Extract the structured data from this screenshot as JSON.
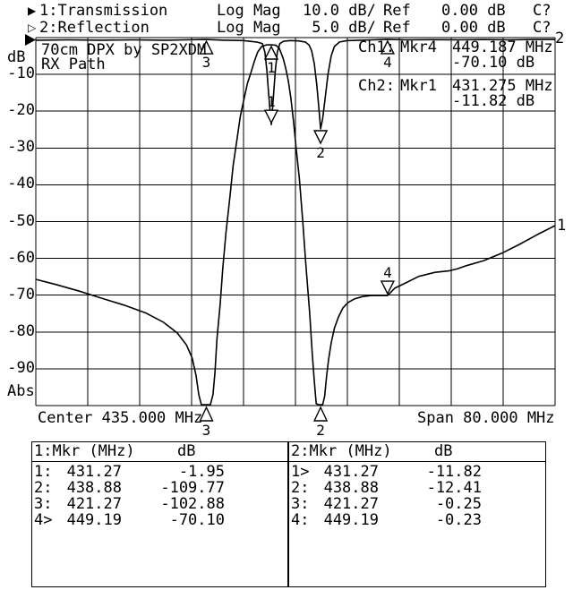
{
  "annotation": {
    "line1": {
      "marker_icon": "▶",
      "channel": "1:Transmission",
      "format": "Log Mag",
      "scale": "10.0 dB/",
      "ref_label": "Ref",
      "ref_value": "0.00 dB",
      "status": "C?"
    },
    "line2": {
      "marker_icon": "▷",
      "channel": "2:Reflection",
      "format": "Log Mag",
      "scale": " 5.0 dB/",
      "ref_label": "Ref",
      "ref_value": "0.00 dB",
      "status": "C?"
    }
  },
  "chart": {
    "title_line1": "70cm DPX by SP2XDM",
    "title_line2": "RX Path",
    "y_axis_unit": "dB",
    "y_axis_bottom": "Abs",
    "y_ticks": [
      "-10",
      "-20",
      "-30",
      "-40",
      "-50",
      "-60",
      "-70",
      "-80",
      "-90"
    ],
    "center_label": "Center 435.000 MHz",
    "span_label": "Span 80.000 MHz",
    "trace_labels": {
      "trace1": "1",
      "trace2": "2"
    },
    "readouts": [
      {
        "channel": "Ch1:",
        "marker": "Mkr4",
        "frequency": "449.187 MHz",
        "level": "-70.10 dB"
      },
      {
        "channel": "Ch2:",
        "marker": "Mkr1",
        "frequency": "431.275 MHz",
        "level": "-11.82 dB"
      }
    ]
  },
  "marker_tables": [
    {
      "title": "1:Mkr (MHz)",
      "db_header": "dB",
      "rows": [
        [
          "1:",
          "431.27",
          "-1.95"
        ],
        [
          "2:",
          "438.88",
          "-109.77"
        ],
        [
          "3:",
          "421.27",
          "-102.88"
        ],
        [
          "4>",
          "449.19",
          "-70.10"
        ]
      ]
    },
    {
      "title": "2:Mkr (MHz)",
      "db_header": "dB",
      "rows": [
        [
          "1>",
          "431.27",
          "-11.82"
        ],
        [
          "2:",
          "438.88",
          "-12.41"
        ],
        [
          "3:",
          "421.27",
          "-0.25"
        ],
        [
          "4:",
          "449.19",
          "-0.23"
        ]
      ]
    }
  ],
  "chart_data": {
    "type": "line",
    "title": "70cm DPX by SP2XDM RX Path",
    "x_unit": "MHz",
    "y_unit": "dB",
    "center_mhz": 435.0,
    "span_mhz": 80.0,
    "x_range": [
      395,
      475
    ],
    "grid": {
      "divisions_x": 10,
      "divisions_y": 10,
      "grid_on": true
    },
    "series": [
      {
        "name": "Transmission",
        "channel": 1,
        "db_per_div": 10,
        "ref_db": 0,
        "points": [
          [
            395,
            -65.7
          ],
          [
            398.3,
            -67.2
          ],
          [
            401.7,
            -68.9
          ],
          [
            405.1,
            -70.8
          ],
          [
            408.6,
            -72.7
          ],
          [
            412,
            -74.9
          ],
          [
            414.7,
            -77.4
          ],
          [
            416.8,
            -80.3
          ],
          [
            418.2,
            -83.5
          ],
          [
            419.1,
            -87.1
          ],
          [
            419.7,
            -92
          ],
          [
            420.1,
            -97
          ],
          [
            420.5,
            -101.5
          ],
          [
            421.27,
            -102.9
          ],
          [
            421.9,
            -101.5
          ],
          [
            422.3,
            -97
          ],
          [
            422.6,
            -91
          ],
          [
            422.9,
            -82
          ],
          [
            423.4,
            -72.5
          ],
          [
            423.8,
            -62.8
          ],
          [
            424.3,
            -53
          ],
          [
            424.9,
            -43.3
          ],
          [
            425.4,
            -34.8
          ],
          [
            426,
            -27.5
          ],
          [
            426.5,
            -21.4
          ],
          [
            427.1,
            -16.5
          ],
          [
            427.6,
            -12.4
          ],
          [
            428.2,
            -9.2
          ],
          [
            428.7,
            -6.3
          ],
          [
            429.2,
            -3.9
          ],
          [
            429.8,
            -2.4
          ],
          [
            430.5,
            -2
          ],
          [
            431.27,
            -1.95
          ],
          [
            432,
            -2.1
          ],
          [
            432.5,
            -2.9
          ],
          [
            433.1,
            -5.6
          ],
          [
            433.5,
            -8.3
          ],
          [
            433.9,
            -11.7
          ],
          [
            434.3,
            -16.5
          ],
          [
            434.7,
            -22.6
          ],
          [
            435.1,
            -29.9
          ],
          [
            435.6,
            -38.4
          ],
          [
            436.1,
            -49.4
          ],
          [
            436.6,
            -61.6
          ],
          [
            437.2,
            -74.9
          ],
          [
            437.6,
            -86.4
          ],
          [
            437.9,
            -93.2
          ],
          [
            438.2,
            -99.5
          ],
          [
            438.55,
            -105
          ],
          [
            438.88,
            -109.77
          ],
          [
            439.2,
            -104
          ],
          [
            439.5,
            -97.5
          ],
          [
            439.8,
            -92
          ],
          [
            440.1,
            -87.5
          ],
          [
            440.5,
            -83
          ],
          [
            441,
            -79
          ],
          [
            441.6,
            -76
          ],
          [
            442.3,
            -73.5
          ],
          [
            443.1,
            -72
          ],
          [
            444.1,
            -71
          ],
          [
            445.3,
            -70.4
          ],
          [
            446.6,
            -70.1
          ],
          [
            448,
            -70.05
          ],
          [
            449.19,
            -70.1
          ],
          [
            450.3,
            -68.1
          ],
          [
            451.7,
            -66.9
          ],
          [
            454,
            -64.9
          ],
          [
            456.5,
            -63.8
          ],
          [
            458.6,
            -63.4
          ],
          [
            460,
            -62.8
          ],
          [
            461.3,
            -62
          ],
          [
            464,
            -60.6
          ],
          [
            466.8,
            -58.6
          ],
          [
            469.5,
            -56.2
          ],
          [
            472.3,
            -53.5
          ],
          [
            475,
            -51.1
          ]
        ]
      },
      {
        "name": "Reflection",
        "channel": 2,
        "db_per_div": 5,
        "ref_db": 0,
        "points": [
          [
            395,
            -0.35
          ],
          [
            400,
            -0.3
          ],
          [
            405,
            -0.35
          ],
          [
            410,
            -0.3
          ],
          [
            415,
            -0.35
          ],
          [
            418,
            -0.3
          ],
          [
            421.27,
            -0.25
          ],
          [
            424,
            -0.35
          ],
          [
            427,
            -0.4
          ],
          [
            429,
            -0.6
          ],
          [
            429.9,
            -0.8
          ],
          [
            430.3,
            -2
          ],
          [
            430.6,
            -4.5
          ],
          [
            430.9,
            -8
          ],
          [
            431.275,
            -11.82
          ],
          [
            431.6,
            -8
          ],
          [
            431.9,
            -4.5
          ],
          [
            432.2,
            -2
          ],
          [
            432.6,
            -0.8
          ],
          [
            433.2,
            -0.5
          ],
          [
            434.2,
            -0.4
          ],
          [
            435.5,
            -0.45
          ],
          [
            436.5,
            -0.6
          ],
          [
            437.1,
            -1
          ],
          [
            437.5,
            -1.8
          ],
          [
            437.9,
            -3.5
          ],
          [
            438.3,
            -6.5
          ],
          [
            438.6,
            -9.5
          ],
          [
            438.88,
            -12.41
          ],
          [
            439.2,
            -11
          ],
          [
            439.6,
            -8
          ],
          [
            440,
            -5
          ],
          [
            440.5,
            -2.5
          ],
          [
            441,
            -1.2
          ],
          [
            441.8,
            -0.6
          ],
          [
            443,
            -0.4
          ],
          [
            445,
            -0.35
          ],
          [
            447,
            -0.3
          ],
          [
            449.19,
            -0.23
          ],
          [
            452,
            -0.3
          ],
          [
            456,
            -0.28
          ],
          [
            460,
            -0.3
          ],
          [
            464,
            -0.27
          ],
          [
            468,
            -0.3
          ],
          [
            472,
            -0.26
          ],
          [
            475,
            -0.25
          ]
        ]
      }
    ],
    "markers": [
      {
        "trace": 1,
        "num": "1",
        "freq_mhz": 431.27,
        "db": -1.95,
        "glyph": "A"
      },
      {
        "trace": 1,
        "num": "2",
        "freq_mhz": 438.88,
        "db": -109.77,
        "glyph": "bottom"
      },
      {
        "trace": 1,
        "num": "3",
        "freq_mhz": 421.27,
        "db": -102.88,
        "glyph": "bottom"
      },
      {
        "trace": 1,
        "num": "4",
        "freq_mhz": 449.19,
        "db": -70.1,
        "glyph": "B"
      },
      {
        "trace": 2,
        "num": "1",
        "freq_mhz": 431.275,
        "db": -11.82,
        "glyph": "B"
      },
      {
        "trace": 2,
        "num": "2",
        "freq_mhz": 438.88,
        "db": -12.41,
        "glyph": "C"
      },
      {
        "trace": 2,
        "num": "3",
        "freq_mhz": 421.27,
        "db": -0.25,
        "glyph": "A"
      },
      {
        "trace": 2,
        "num": "4",
        "freq_mhz": 449.19,
        "db": -0.23,
        "glyph": "A"
      }
    ],
    "colors": {
      "foreground": "#000000",
      "background": "#ffffff"
    }
  }
}
